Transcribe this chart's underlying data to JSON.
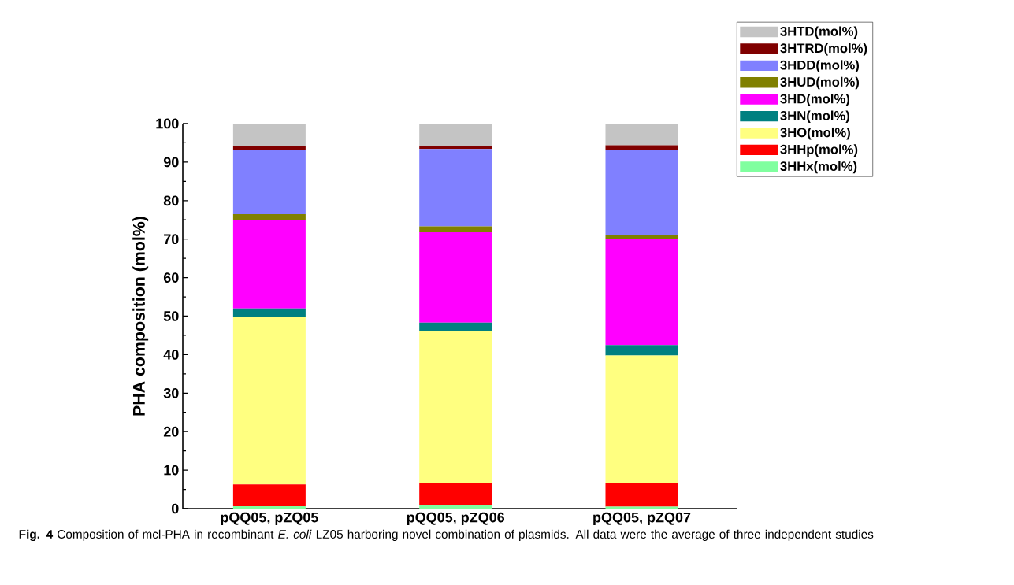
{
  "chart_data": {
    "type": "bar",
    "stacked": true,
    "ylabel": "PHA composition (mol%)",
    "categories": [
      "pQQ05, pZQ05",
      "pQQ05, pZQ06",
      "pQQ05, pZQ07"
    ],
    "series": [
      {
        "name": "3HHx(mol%)",
        "color": "#80ff9f",
        "values": [
          0.6,
          0.8,
          0.5
        ]
      },
      {
        "name": "3HHp(mol%)",
        "color": "#ff0000",
        "values": [
          5.7,
          5.9,
          6.1
        ]
      },
      {
        "name": "3HO(mol%)",
        "color": "#ffff80",
        "values": [
          43.4,
          39.3,
          33.2
        ]
      },
      {
        "name": "3HN(mol%)",
        "color": "#008080",
        "values": [
          2.3,
          2.3,
          2.7
        ]
      },
      {
        "name": "3HD(mol%)",
        "color": "#ff00ff",
        "values": [
          23,
          23.5,
          27.5
        ]
      },
      {
        "name": "3HUD(mol%)",
        "color": "#808000",
        "values": [
          1.5,
          1.5,
          1.1
        ]
      },
      {
        "name": "3HDD(mol%)",
        "color": "#8080ff",
        "values": [
          16.7,
          20.1,
          22.1
        ]
      },
      {
        "name": "3HTRD(mol%)",
        "color": "#800000",
        "values": [
          1.0,
          0.8,
          1.2
        ]
      },
      {
        "name": "3HTD(mol%)",
        "color": "#c4c4c4",
        "values": [
          5.8,
          5.8,
          5.6
        ]
      }
    ],
    "ylim": [
      0,
      100
    ],
    "yticks": [
      0,
      10,
      20,
      30,
      40,
      50,
      60,
      70,
      80,
      90,
      100
    ],
    "legend": "top right",
    "annotations": [
      "**Fig. 4** Composition of mcl-PHA in recombinant *E. coli* LZ05 harboring novel combination of plasmids. All data were the average of three independent studies"
    ]
  }
}
